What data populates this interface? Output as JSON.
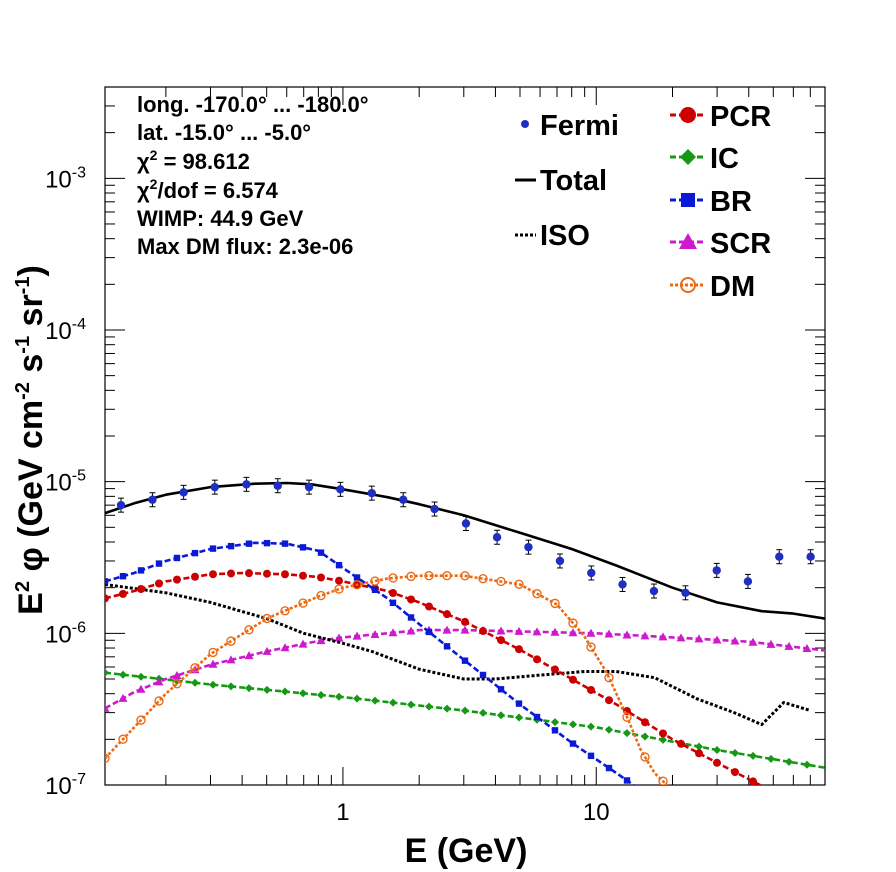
{
  "chart_data": {
    "type": "line",
    "x_scale": "log",
    "y_scale": "log",
    "xlim": [
      0.115,
      80
    ],
    "ylim": [
      1e-07,
      0.004
    ],
    "xlabel": "E (GeV)",
    "ylabel_main": "E",
    "ylabel_sup": "2",
    "ylabel_phi": " φ (GeV cm",
    "ylabel_sup2": "-2",
    "ylabel_s": " s",
    "ylabel_sup3": "-1",
    "ylabel_sr": " sr",
    "ylabel_sup4": "-1",
    "ylabel_close": ")",
    "x_ticks": [
      {
        "value": 1,
        "label": "1"
      },
      {
        "value": 10,
        "label": "10"
      }
    ],
    "y_ticks": [
      {
        "value": 1e-07,
        "base": "10",
        "exp": "-7"
      },
      {
        "value": 1e-06,
        "base": "10",
        "exp": "-6"
      },
      {
        "value": 1e-05,
        "base": "10",
        "exp": "-5"
      },
      {
        "value": 0.0001,
        "base": "10",
        "exp": "-4"
      },
      {
        "value": 0.001,
        "base": "10",
        "exp": "-3"
      }
    ],
    "info": {
      "longitude": "long. -170.0° ... -180.0°",
      "latitude": "lat. -15.0° ... -5.0°",
      "chi2_symbol": "χ",
      "chi2_sup": "2",
      "chi2_value": " = 98.612",
      "chi2dof_symbol": "χ",
      "chi2dof_sup": "2",
      "chi2dof_value": "/dof = 6.574",
      "wimp": "WIMP: 44.9 GeV",
      "max_dm": "Max DM flux: 2.3e-06"
    },
    "legend": {
      "fermi": {
        "label": "Fermi",
        "color": "#1f2fc2"
      },
      "total": {
        "label": "Total",
        "color": "#000000"
      },
      "iso": {
        "label": "ISO",
        "color": "#000000"
      },
      "pcr": {
        "label": "PCR",
        "color": "#cc0000"
      },
      "ic": {
        "label": "IC",
        "color": "#159915"
      },
      "br": {
        "label": "BR",
        "color": "#0a1ad6"
      },
      "scr": {
        "label": "SCR",
        "color": "#cc1acc"
      },
      "dm": {
        "label": "DM",
        "color": "#ee6a12"
      }
    },
    "fermi_points": {
      "x": [
        0.133,
        0.177,
        0.235,
        0.312,
        0.416,
        0.553,
        0.735,
        0.977,
        1.3,
        1.73,
        2.3,
        3.06,
        4.06,
        5.4,
        7.19,
        9.56,
        12.7,
        16.9,
        22.5,
        29.9,
        39.7,
        52.8,
        70.2
      ],
      "y": [
        7e-06,
        7.6e-06,
        8.5e-06,
        9.2e-06,
        9.6e-06,
        9.4e-06,
        9.2e-06,
        8.9e-06,
        8.4e-06,
        7.6e-06,
        6.6e-06,
        5.3e-06,
        4.3e-06,
        3.7e-06,
        3e-06,
        2.5e-06,
        2.1e-06,
        1.9e-06,
        1.85e-06,
        2.6e-06,
        2.2e-06,
        3.2e-06,
        3.2e-06
      ]
    },
    "series": [
      {
        "name": "Total",
        "style": "solid",
        "x": [
          0.115,
          0.15,
          0.2,
          0.3,
          0.45,
          0.6,
          0.75,
          1.0,
          1.5,
          2.0,
          3.0,
          5.0,
          8.0,
          12,
          20,
          30,
          45,
          60,
          80
        ],
        "y": [
          6.2e-06,
          7.2e-06,
          8.2e-06,
          9.2e-06,
          9.7e-06,
          9.8e-06,
          9.6e-06,
          8.9e-06,
          7.9e-06,
          7.1e-06,
          6e-06,
          4.6e-06,
          3.6e-06,
          2.8e-06,
          2e-06,
          1.6e-06,
          1.4e-06,
          1.35e-06,
          1.25e-06
        ]
      },
      {
        "name": "ISO",
        "style": "dotted",
        "x": [
          0.115,
          0.2,
          0.3,
          0.5,
          0.7,
          1.0,
          1.3,
          2.0,
          3.0,
          4.0,
          6.0,
          9.0,
          12,
          17,
          25,
          35,
          45,
          55,
          70
        ],
        "y": [
          2.1e-06,
          1.85e-06,
          1.6e-06,
          1.25e-06,
          1e-06,
          8.6e-07,
          7.6e-07,
          5.8e-07,
          5e-07,
          5e-07,
          5.3e-07,
          5.6e-07,
          5.6e-07,
          5.1e-07,
          3.7e-07,
          3e-07,
          2.5e-07,
          3.5e-07,
          3.1e-07
        ]
      },
      {
        "name": "PCR",
        "style": "dashed",
        "x": [
          0.115,
          0.15,
          0.2,
          0.3,
          0.4,
          0.6,
          0.8,
          1.0,
          1.5,
          2.0,
          3.0,
          5.0,
          8.0,
          12,
          20,
          30,
          50,
          80
        ],
        "y": [
          1.7e-06,
          1.9e-06,
          2.2e-06,
          2.45e-06,
          2.5e-06,
          2.45e-06,
          2.35e-06,
          2.2e-06,
          1.9e-06,
          1.6e-06,
          1.2e-06,
          7.8e-07,
          5e-07,
          3.4e-07,
          2e-07,
          1.4e-07,
          9e-08,
          7e-08
        ]
      },
      {
        "name": "IC",
        "style": "dashed",
        "x": [
          0.115,
          0.3,
          1.0,
          3.0,
          10,
          30,
          80
        ],
        "y": [
          5.5e-07,
          4.6e-07,
          3.8e-07,
          3.1e-07,
          2.4e-07,
          1.7e-07,
          1.3e-07
        ]
      },
      {
        "name": "BR",
        "style": "dashed",
        "x": [
          0.115,
          0.15,
          0.2,
          0.3,
          0.45,
          0.6,
          0.8,
          1.0,
          1.5,
          2.0,
          3.0,
          5.0,
          8.0,
          12,
          17
        ],
        "y": [
          2.2e-06,
          2.5e-06,
          3e-06,
          3.6e-06,
          3.95e-06,
          3.9e-06,
          3.5e-06,
          2.7e-06,
          1.7e-06,
          1.15e-06,
          6.7e-07,
          3.4e-07,
          1.9e-07,
          1.2e-07,
          8e-08
        ]
      },
      {
        "name": "SCR",
        "style": "dashed",
        "x": [
          0.115,
          0.15,
          0.2,
          0.3,
          0.5,
          0.8,
          1.0,
          1.5,
          2.0,
          3.0,
          5.0,
          10,
          20,
          40,
          80
        ],
        "y": [
          3.2e-07,
          4.1e-07,
          5e-07,
          6.2e-07,
          7.6e-07,
          8.9e-07,
          9.4e-07,
          1e-06,
          1.05e-06,
          1.05e-06,
          1.03e-06,
          1e-06,
          9.4e-07,
          8.8e-07,
          7.7e-07
        ]
      },
      {
        "name": "DM",
        "style": "dotted",
        "x": [
          0.115,
          0.15,
          0.2,
          0.3,
          0.5,
          0.8,
          1.0,
          1.5,
          2.0,
          2.5,
          3.0,
          5.0,
          7.0,
          9.0,
          11,
          13,
          15,
          17,
          19,
          20
        ],
        "y": [
          1.5e-07,
          2.4e-07,
          4e-07,
          7.3e-07,
          1.25e-06,
          1.75e-06,
          2e-06,
          2.3e-06,
          2.4e-06,
          2.4e-06,
          2.4e-06,
          2.1e-06,
          1.55e-06,
          9.5e-07,
          5.5e-07,
          3e-07,
          1.7e-07,
          1.2e-07,
          1e-07,
          9e-08
        ]
      }
    ]
  }
}
